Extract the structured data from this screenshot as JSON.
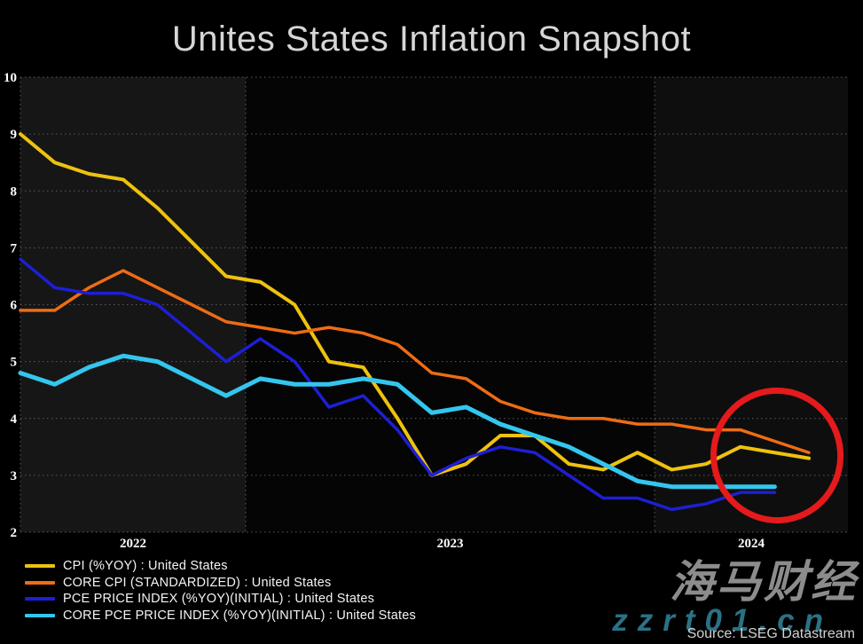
{
  "title": "Unites States Inflation Snapshot",
  "source": "Source: LSEG Datastream",
  "watermark": {
    "brand": "海马财经",
    "site": "zzrt01.cn"
  },
  "colors": {
    "background": "#000000",
    "band_2022": "#161616",
    "band_2023": "#050505",
    "band_2024": "#0e0e0e",
    "gridline": "#5d5d5d",
    "axis_text": "#ffffff",
    "title_text": "#d6d6d6",
    "annotation_red": "#e41a1c",
    "watermark_gray": "#949494",
    "watermark_teal": "#2b7186"
  },
  "chart_data": {
    "type": "line",
    "title": "Unites States Inflation Snapshot",
    "xlabel": "",
    "ylabel": "",
    "ylim": [
      2,
      10
    ],
    "y_ticks": [
      10,
      9,
      8,
      7,
      6,
      5,
      4,
      3,
      2
    ],
    "grid": "dotted horizontal gridlines; dotted vertical year dividers",
    "legend_position": "bottom-left",
    "x": [
      "2022-06",
      "2022-07",
      "2022-08",
      "2022-09",
      "2022-10",
      "2022-11",
      "2022-12",
      "2023-01",
      "2023-02",
      "2023-03",
      "2023-04",
      "2023-05",
      "2023-06",
      "2023-07",
      "2023-08",
      "2023-09",
      "2023-10",
      "2023-11",
      "2023-12",
      "2024-01",
      "2024-02",
      "2024-03",
      "2024-04",
      "2024-05"
    ],
    "x_axis_year_labels": [
      "2022",
      "2023",
      "2024"
    ],
    "series": [
      {
        "key": "cpi",
        "name": "CPI (%YOY) : United States",
        "color": "#eec20f",
        "values": [
          9.0,
          8.5,
          8.3,
          8.2,
          7.7,
          7.1,
          6.5,
          6.4,
          6.0,
          5.0,
          4.9,
          4.0,
          3.0,
          3.2,
          3.7,
          3.7,
          3.2,
          3.1,
          3.4,
          3.1,
          3.2,
          3.5,
          3.4,
          3.3
        ]
      },
      {
        "key": "core-cpi",
        "name": "CORE CPI (STANDARDIZED) : United States",
        "color": "#ee6c14",
        "values": [
          5.9,
          5.9,
          6.3,
          6.6,
          6.3,
          6.0,
          5.7,
          5.6,
          5.5,
          5.6,
          5.5,
          5.3,
          4.8,
          4.7,
          4.3,
          4.1,
          4.0,
          4.0,
          3.9,
          3.9,
          3.8,
          3.8,
          3.6,
          3.4
        ]
      },
      {
        "key": "pce",
        "name": "PCE PRICE INDEX (%YOY)(INITIAL) : United States",
        "color": "#1d1fd6",
        "values": [
          6.8,
          6.3,
          6.2,
          6.2,
          6.0,
          5.5,
          5.0,
          5.4,
          5.0,
          4.2,
          4.4,
          3.8,
          3.0,
          3.3,
          3.5,
          3.4,
          3.0,
          2.6,
          2.6,
          2.4,
          2.5,
          2.7,
          2.7
        ]
      },
      {
        "key": "core-pce",
        "name": "CORE PCE PRICE INDEX (%YOY)(INITIAL) : United States",
        "color": "#33c6ee",
        "values": [
          4.8,
          4.6,
          4.9,
          5.1,
          5.0,
          4.7,
          4.4,
          4.7,
          4.6,
          4.6,
          4.7,
          4.6,
          4.1,
          4.2,
          3.9,
          3.7,
          3.5,
          3.2,
          2.9,
          2.8,
          2.8,
          2.8,
          2.8
        ]
      }
    ],
    "annotation": {
      "type": "ellipse",
      "color": "#e41a1c",
      "center_month": "2024-04",
      "center_value": 3.35,
      "radius_months": 1.85,
      "radius_value": 1.14,
      "note": "red circle highlighting latest 2024 inflation readings"
    }
  }
}
